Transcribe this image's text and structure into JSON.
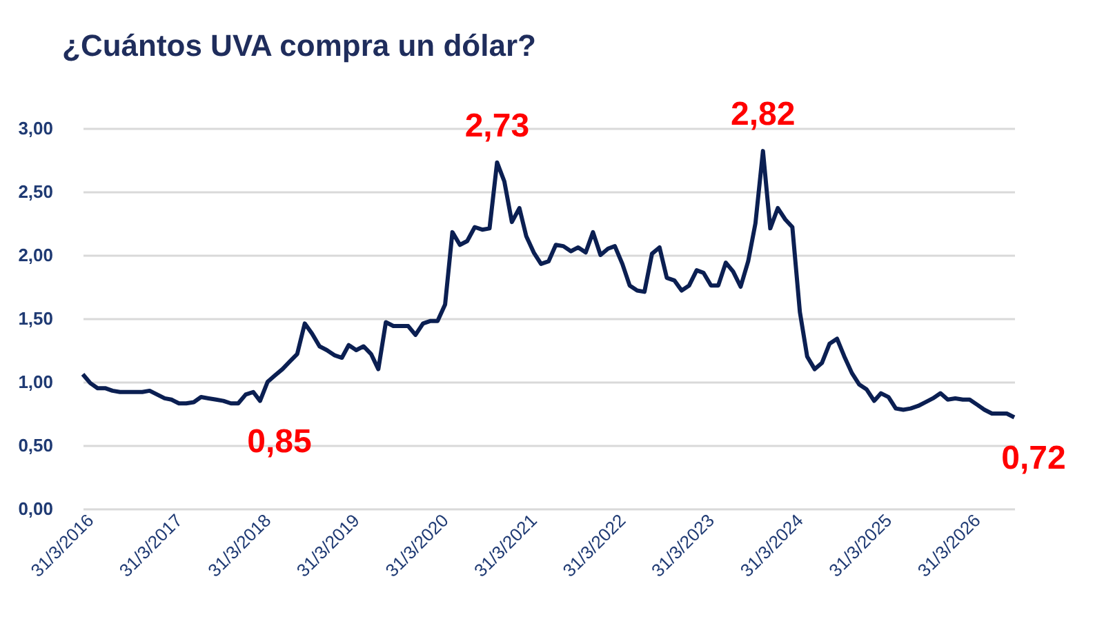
{
  "chart_data": {
    "type": "line",
    "title": "¿Cuántos UVA compra un dólar?",
    "x": [
      "2016-03",
      "2016-04",
      "2016-05",
      "2016-06",
      "2016-07",
      "2016-08",
      "2016-09",
      "2016-10",
      "2016-11",
      "2016-12",
      "2017-01",
      "2017-02",
      "2017-03",
      "2017-04",
      "2017-05",
      "2017-06",
      "2017-07",
      "2017-08",
      "2017-09",
      "2017-10",
      "2017-11",
      "2017-12",
      "2018-01",
      "2018-02",
      "2018-03",
      "2018-04",
      "2018-05",
      "2018-06",
      "2018-07",
      "2018-08",
      "2018-09",
      "2018-10",
      "2018-11",
      "2018-12",
      "2019-01",
      "2019-02",
      "2019-03",
      "2019-04",
      "2019-05",
      "2019-06",
      "2019-07",
      "2019-08",
      "2019-09",
      "2019-10",
      "2019-11",
      "2019-12",
      "2020-01",
      "2020-02",
      "2020-03",
      "2020-04",
      "2020-05",
      "2020-06",
      "2020-07",
      "2020-08",
      "2020-09",
      "2020-10",
      "2020-11",
      "2020-12",
      "2021-01",
      "2021-02",
      "2021-03",
      "2021-04",
      "2021-05",
      "2021-06",
      "2021-07",
      "2021-08",
      "2021-09",
      "2021-10",
      "2021-11",
      "2021-12",
      "2022-01",
      "2022-02",
      "2022-03",
      "2022-04",
      "2022-05",
      "2022-06",
      "2022-07",
      "2022-08",
      "2022-09",
      "2022-10",
      "2022-11",
      "2022-12",
      "2023-01",
      "2023-02",
      "2023-03",
      "2023-04",
      "2023-05",
      "2023-06",
      "2023-07",
      "2023-08",
      "2023-09",
      "2023-10",
      "2023-11",
      "2023-12",
      "2024-01",
      "2024-02",
      "2024-03",
      "2024-04",
      "2024-05",
      "2024-06",
      "2024-07",
      "2024-08",
      "2024-09",
      "2024-10",
      "2024-11",
      "2024-12",
      "2025-01",
      "2025-02",
      "2025-03",
      "2025-04",
      "2025-05",
      "2025-06",
      "2025-07",
      "2025-08",
      "2025-09",
      "2025-10",
      "2025-11",
      "2025-12",
      "2026-01",
      "2026-02",
      "2026-03",
      "2026-04",
      "2026-05",
      "2026-06",
      "2026-07",
      "2026-08",
      "2026-09"
    ],
    "series": [
      {
        "color": "#0b1f52",
        "values": [
          1.06,
          0.99,
          0.95,
          0.95,
          0.93,
          0.92,
          0.92,
          0.92,
          0.92,
          0.93,
          0.9,
          0.87,
          0.86,
          0.83,
          0.83,
          0.84,
          0.88,
          0.87,
          0.86,
          0.85,
          0.83,
          0.83,
          0.9,
          0.92,
          0.85,
          1.0,
          1.05,
          1.1,
          1.16,
          1.22,
          1.46,
          1.38,
          1.28,
          1.25,
          1.21,
          1.19,
          1.29,
          1.25,
          1.28,
          1.22,
          1.1,
          1.47,
          1.44,
          1.44,
          1.44,
          1.37,
          1.46,
          1.48,
          1.48,
          1.61,
          2.18,
          2.08,
          2.11,
          2.22,
          2.2,
          2.21,
          2.73,
          2.58,
          2.26,
          2.37,
          2.15,
          2.02,
          1.93,
          1.95,
          2.08,
          2.07,
          2.03,
          2.06,
          2.02,
          2.18,
          2.0,
          2.05,
          2.07,
          1.93,
          1.76,
          1.72,
          1.71,
          2.01,
          2.06,
          1.82,
          1.8,
          1.72,
          1.76,
          1.88,
          1.86,
          1.76,
          1.76,
          1.94,
          1.87,
          1.75,
          1.95,
          2.25,
          2.82,
          2.21,
          2.37,
          2.28,
          2.22,
          1.55,
          1.2,
          1.1,
          1.15,
          1.3,
          1.34,
          1.2,
          1.07,
          0.98,
          0.94,
          0.85,
          0.91,
          0.88,
          0.79,
          0.78,
          0.79,
          0.81,
          0.84,
          0.87,
          0.91,
          0.86,
          0.87,
          0.86,
          0.86,
          0.82,
          0.78,
          0.75,
          0.75,
          0.75,
          0.72
        ]
      }
    ],
    "xlim": [
      "2016-03",
      "2026-09"
    ],
    "xticks": [
      {
        "value": "2016-03-31",
        "label": "31/3/2016"
      },
      {
        "value": "2017-03-31",
        "label": "31/3/2017"
      },
      {
        "value": "2018-03-31",
        "label": "31/3/2018"
      },
      {
        "value": "2019-03-31",
        "label": "31/3/2019"
      },
      {
        "value": "2020-03-31",
        "label": "31/3/2020"
      },
      {
        "value": "2021-03-31",
        "label": "31/3/2021"
      },
      {
        "value": "2022-03-31",
        "label": "31/3/2022"
      },
      {
        "value": "2023-03-31",
        "label": "31/3/2023"
      },
      {
        "value": "2024-03-31",
        "label": "31/3/2024"
      },
      {
        "value": "2025-03-31",
        "label": "31/3/2025"
      },
      {
        "value": "2026-03-31",
        "label": "31/3/2026"
      }
    ],
    "ylim": [
      0,
      3
    ],
    "yticks": [
      {
        "value": 0,
        "label": "0,00"
      },
      {
        "value": 0.5,
        "label": "0,50"
      },
      {
        "value": 1,
        "label": "1,00"
      },
      {
        "value": 1.5,
        "label": "1,50"
      },
      {
        "value": 2,
        "label": "2,00"
      },
      {
        "value": 2.5,
        "label": "2,50"
      },
      {
        "value": 3,
        "label": "3,00"
      }
    ],
    "grid": "y",
    "annotations": [
      {
        "text": "0,85",
        "x": "2018-03",
        "y": 0.85
      },
      {
        "text": "2,73",
        "x": "2020-11",
        "y": 2.73
      },
      {
        "text": "2,82",
        "x": "2023-11",
        "y": 2.82
      },
      {
        "text": "0,72",
        "x": "2026-09",
        "y": 0.72
      }
    ]
  }
}
